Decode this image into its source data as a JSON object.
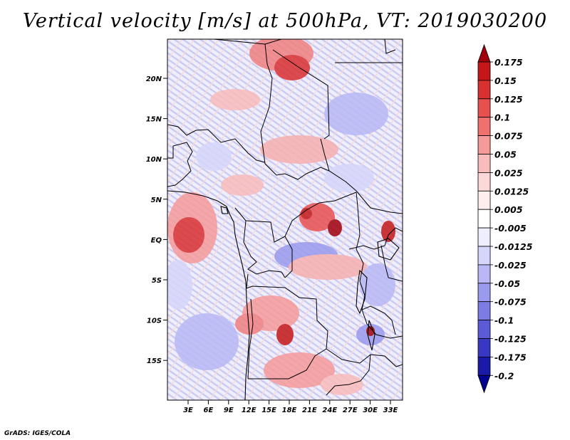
{
  "title": "Vertical velocity [m/s] at 500hPa, VT: 2019030200",
  "credit": "GrADS: IGES/COLA",
  "map": {
    "lat_ticks": [
      "20N",
      "15N",
      "10N",
      "5N",
      "EQ",
      "5S",
      "10S",
      "15S"
    ],
    "lon_ticks": [
      "3E",
      "6E",
      "9E",
      "12E",
      "15E",
      "18E",
      "21E",
      "24E",
      "27E",
      "30E",
      "33E"
    ]
  },
  "colorbar": {
    "labels": [
      "0.175",
      "0.15",
      "0.125",
      "0.1",
      "0.075",
      "0.05",
      "0.025",
      "0.0125",
      "0.005",
      "-0.005",
      "-0.0125",
      "-0.025",
      "-0.05",
      "-0.075",
      "-0.1",
      "-0.125",
      "-0.175",
      "-0.2"
    ],
    "colors": [
      "#a0000c",
      "#c41818",
      "#d93030",
      "#e85050",
      "#f07070",
      "#f59a9a",
      "#f9bcbc",
      "#fcd8d8",
      "#ffeeee",
      "#ffffff",
      "#eeeeff",
      "#d6d6fc",
      "#b8b8f6",
      "#9a9aee",
      "#7c7ce4",
      "#5b5bd8",
      "#3838c4",
      "#1a1aa8",
      "#000090"
    ]
  }
}
